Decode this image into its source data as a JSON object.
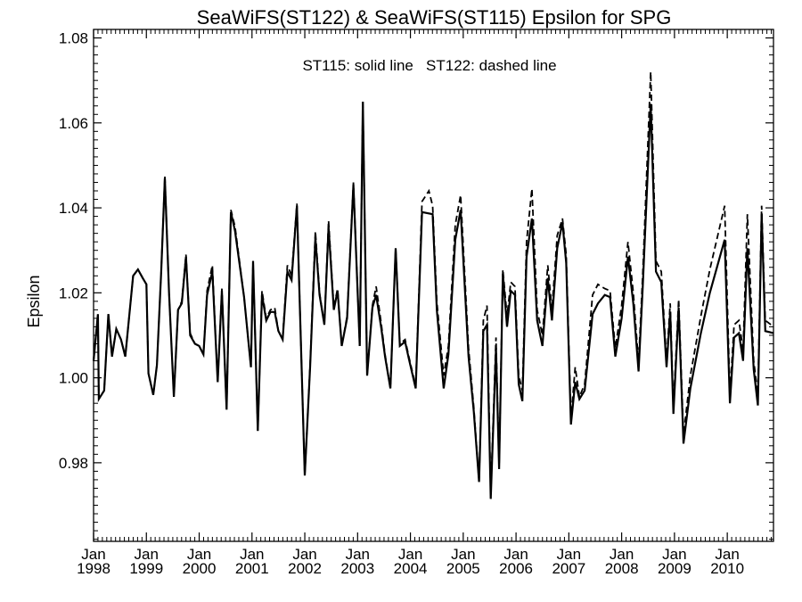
{
  "chart_data": {
    "type": "line",
    "title": "SeaWiFS(ST122) & SeaWiFS(ST115)  Epsilon for SPG",
    "annotation": "ST115: solid line   ST122: dashed line",
    "ylabel": "Epsilon",
    "xlabel": "",
    "xlim": [
      1998.0,
      2010.875
    ],
    "ylim": [
      0.9615,
      1.082
    ],
    "x_ticks": [
      {
        "x": 1998,
        "month": "Jan",
        "year": "1998"
      },
      {
        "x": 1999,
        "month": "Jan",
        "year": "1999"
      },
      {
        "x": 2000,
        "month": "Jan",
        "year": "2000"
      },
      {
        "x": 2001,
        "month": "Jan",
        "year": "2001"
      },
      {
        "x": 2002,
        "month": "Jan",
        "year": "2002"
      },
      {
        "x": 2003,
        "month": "Jan",
        "year": "2003"
      },
      {
        "x": 2004,
        "month": "Jan",
        "year": "2004"
      },
      {
        "x": 2005,
        "month": "Jan",
        "year": "2005"
      },
      {
        "x": 2006,
        "month": "Jan",
        "year": "2006"
      },
      {
        "x": 2007,
        "month": "Jan",
        "year": "2007"
      },
      {
        "x": 2008,
        "month": "Jan",
        "year": "2008"
      },
      {
        "x": 2009,
        "month": "Jan",
        "year": "2009"
      },
      {
        "x": 2010,
        "month": "Jan",
        "year": "2010"
      }
    ],
    "y_ticks": [
      {
        "value": 0.98,
        "label": "0.98"
      },
      {
        "value": 1.0,
        "label": "1.00"
      },
      {
        "value": 1.02,
        "label": "1.02"
      },
      {
        "value": 1.04,
        "label": "1.04"
      },
      {
        "value": 1.06,
        "label": "1.06"
      },
      {
        "value": 1.08,
        "label": "1.08"
      }
    ],
    "grid": false,
    "series": [
      {
        "name": "ST115",
        "style": "solid",
        "color": "#000000",
        "points": [
          [
            1998.0,
            1.004
          ],
          [
            1998.083,
            1.015
          ],
          [
            1998.1,
            0.995
          ],
          [
            1998.2,
            0.997
          ],
          [
            1998.28,
            1.015
          ],
          [
            1998.35,
            1.005
          ],
          [
            1998.43,
            1.0115
          ],
          [
            1998.52,
            1.009
          ],
          [
            1998.6,
            1.005
          ],
          [
            1998.75,
            1.024
          ],
          [
            1998.84,
            1.0255
          ],
          [
            1998.93,
            1.0235
          ],
          [
            1999.0,
            1.022
          ],
          [
            1999.04,
            1.001
          ],
          [
            1999.13,
            0.996
          ],
          [
            1999.2,
            1.003
          ],
          [
            1999.28,
            1.025
          ],
          [
            1999.35,
            1.047
          ],
          [
            1999.43,
            1.02
          ],
          [
            1999.52,
            0.9955
          ],
          [
            1999.6,
            1.016
          ],
          [
            1999.67,
            1.0175
          ],
          [
            1999.75,
            1.0285
          ],
          [
            1999.83,
            1.01
          ],
          [
            1999.92,
            1.008
          ],
          [
            2000.0,
            1.0075
          ],
          [
            2000.08,
            1.0055
          ],
          [
            2000.15,
            1.0195
          ],
          [
            2000.25,
            1.025
          ],
          [
            2000.35,
            0.999
          ],
          [
            2000.43,
            1.0205
          ],
          [
            2000.52,
            0.9925
          ],
          [
            2000.6,
            1.039
          ],
          [
            2000.68,
            1.0345
          ],
          [
            2000.85,
            1.019
          ],
          [
            2000.98,
            1.0025
          ],
          [
            2001.02,
            1.0275
          ],
          [
            2001.11,
            0.9875
          ],
          [
            2001.19,
            1.0195
          ],
          [
            2001.27,
            1.0135
          ],
          [
            2001.35,
            1.0155
          ],
          [
            2001.43,
            1.0155
          ],
          [
            2001.5,
            1.011
          ],
          [
            2001.58,
            1.009
          ],
          [
            2001.67,
            1.025
          ],
          [
            2001.75,
            1.023
          ],
          [
            2001.85,
            1.0405
          ],
          [
            2002.0,
            0.977
          ],
          [
            2002.1,
            1.0025
          ],
          [
            2002.2,
            1.033
          ],
          [
            2002.28,
            1.0195
          ],
          [
            2002.37,
            1.0125
          ],
          [
            2002.45,
            1.0355
          ],
          [
            2002.55,
            1.016
          ],
          [
            2002.62,
            1.0205
          ],
          [
            2002.7,
            1.0075
          ],
          [
            2002.8,
            1.014
          ],
          [
            2002.92,
            1.0455
          ],
          [
            2003.04,
            1.0075
          ],
          [
            2003.1,
            1.065
          ],
          [
            2003.18,
            1.0005
          ],
          [
            2003.28,
            1.0165
          ],
          [
            2003.35,
            1.0195
          ],
          [
            2003.45,
            1.0115
          ],
          [
            2003.52,
            1.005
          ],
          [
            2003.62,
            0.9975
          ],
          [
            2003.72,
            1.0305
          ],
          [
            2003.8,
            1.0075
          ],
          [
            2003.9,
            1.0085
          ],
          [
            2003.97,
            1.0045
          ],
          [
            2004.1,
            0.9975
          ],
          [
            2004.22,
            1.039
          ],
          [
            2004.42,
            1.0385
          ],
          [
            2004.5,
            1.016
          ],
          [
            2004.63,
            0.9975
          ],
          [
            2004.72,
            1.0055
          ],
          [
            2004.85,
            1.0325
          ],
          [
            2004.95,
            1.0395
          ],
          [
            2005.1,
            1.005
          ],
          [
            2005.2,
            0.992
          ],
          [
            2005.3,
            0.9755
          ],
          [
            2005.38,
            1.011
          ],
          [
            2005.45,
            1.0125
          ],
          [
            2005.52,
            0.9715
          ],
          [
            2005.62,
            1.007
          ],
          [
            2005.68,
            0.9785
          ],
          [
            2005.75,
            1.0245
          ],
          [
            2005.83,
            1.012
          ],
          [
            2005.9,
            1.0205
          ],
          [
            2005.98,
            1.0195
          ],
          [
            2006.05,
            0.9985
          ],
          [
            2006.12,
            0.9945
          ],
          [
            2006.2,
            1.0285
          ],
          [
            2006.3,
            1.0375
          ],
          [
            2006.4,
            1.0135
          ],
          [
            2006.5,
            1.0075
          ],
          [
            2006.6,
            1.0235
          ],
          [
            2006.68,
            1.0135
          ],
          [
            2006.78,
            1.0305
          ],
          [
            2006.88,
            1.0365
          ],
          [
            2006.95,
            1.027
          ],
          [
            2007.04,
            0.989
          ],
          [
            2007.12,
            0.999
          ],
          [
            2007.2,
            0.995
          ],
          [
            2007.3,
            0.997
          ],
          [
            2007.45,
            1.015
          ],
          [
            2007.55,
            1.0175
          ],
          [
            2007.68,
            1.0195
          ],
          [
            2007.78,
            1.019
          ],
          [
            2007.88,
            1.005
          ],
          [
            2008.0,
            1.014
          ],
          [
            2008.12,
            1.0285
          ],
          [
            2008.22,
            1.0175
          ],
          [
            2008.32,
            1.0015
          ],
          [
            2008.4,
            1.0215
          ],
          [
            2008.55,
            1.0645
          ],
          [
            2008.65,
            1.025
          ],
          [
            2008.75,
            1.0225
          ],
          [
            2008.85,
            1.0025
          ],
          [
            2008.92,
            1.0155
          ],
          [
            2008.98,
            0.9915
          ],
          [
            2009.08,
            1.0165
          ],
          [
            2009.17,
            0.9845
          ],
          [
            2009.3,
            0.9975
          ],
          [
            2009.5,
            1.0105
          ],
          [
            2009.67,
            1.02
          ],
          [
            2009.95,
            1.0325
          ],
          [
            2010.05,
            0.994
          ],
          [
            2010.13,
            1.0095
          ],
          [
            2010.22,
            1.0105
          ],
          [
            2010.3,
            1.004
          ],
          [
            2010.38,
            1.0305
          ],
          [
            2010.5,
            1.002
          ],
          [
            2010.58,
            0.9935
          ],
          [
            2010.65,
            1.0385
          ],
          [
            2010.72,
            1.011
          ],
          [
            2010.88,
            1.0105
          ]
        ]
      },
      {
        "name": "ST122",
        "style": "dashed",
        "color": "#000000",
        "points": [
          [
            1998.0,
            1.004
          ],
          [
            1998.083,
            1.015
          ],
          [
            1998.1,
            0.995
          ],
          [
            1998.2,
            0.997
          ],
          [
            1998.28,
            1.015
          ],
          [
            1998.35,
            1.005
          ],
          [
            1998.43,
            1.0115
          ],
          [
            1998.52,
            1.009
          ],
          [
            1998.6,
            1.005
          ],
          [
            1998.75,
            1.024
          ],
          [
            1998.84,
            1.0255
          ],
          [
            1998.93,
            1.0235
          ],
          [
            1999.0,
            1.022
          ],
          [
            1999.04,
            1.001
          ],
          [
            1999.13,
            0.996
          ],
          [
            1999.2,
            1.003
          ],
          [
            1999.28,
            1.025
          ],
          [
            1999.35,
            1.0475
          ],
          [
            1999.43,
            1.02
          ],
          [
            1999.52,
            0.9955
          ],
          [
            1999.6,
            1.016
          ],
          [
            1999.67,
            1.018
          ],
          [
            1999.75,
            1.029
          ],
          [
            1999.83,
            1.0105
          ],
          [
            1999.92,
            1.008
          ],
          [
            2000.0,
            1.0075
          ],
          [
            2000.08,
            1.0055
          ],
          [
            2000.15,
            1.0205
          ],
          [
            2000.25,
            1.0265
          ],
          [
            2000.35,
            0.999
          ],
          [
            2000.43,
            1.021
          ],
          [
            2000.52,
            0.9925
          ],
          [
            2000.6,
            1.0395
          ],
          [
            2000.68,
            1.0355
          ],
          [
            2000.85,
            1.019
          ],
          [
            2000.98,
            1.0025
          ],
          [
            2001.02,
            1.0275
          ],
          [
            2001.11,
            0.9875
          ],
          [
            2001.19,
            1.0205
          ],
          [
            2001.27,
            1.014
          ],
          [
            2001.35,
            1.016
          ],
          [
            2001.43,
            1.0165
          ],
          [
            2001.5,
            1.011
          ],
          [
            2001.58,
            1.0095
          ],
          [
            2001.67,
            1.0265
          ],
          [
            2001.75,
            1.024
          ],
          [
            2001.85,
            1.041
          ],
          [
            2002.0,
            0.977
          ],
          [
            2002.1,
            1.003
          ],
          [
            2002.2,
            1.0345
          ],
          [
            2002.28,
            1.02
          ],
          [
            2002.37,
            1.0125
          ],
          [
            2002.45,
            1.037
          ],
          [
            2002.55,
            1.0165
          ],
          [
            2002.62,
            1.021
          ],
          [
            2002.7,
            1.0075
          ],
          [
            2002.8,
            1.0145
          ],
          [
            2002.92,
            1.046
          ],
          [
            2003.04,
            1.0075
          ],
          [
            2003.1,
            1.065
          ],
          [
            2003.18,
            1.0005
          ],
          [
            2003.28,
            1.017
          ],
          [
            2003.35,
            1.0215
          ],
          [
            2003.45,
            1.0125
          ],
          [
            2003.52,
            1.0055
          ],
          [
            2003.62,
            0.9975
          ],
          [
            2003.72,
            1.0305
          ],
          [
            2003.8,
            1.008
          ],
          [
            2003.9,
            1.009
          ],
          [
            2003.97,
            1.005
          ],
          [
            2004.1,
            0.998
          ],
          [
            2004.22,
            1.0415
          ],
          [
            2004.35,
            1.044
          ],
          [
            2004.42,
            1.0405
          ],
          [
            2004.5,
            1.018
          ],
          [
            2004.63,
            1.0005
          ],
          [
            2004.72,
            1.0075
          ],
          [
            2004.85,
            1.036
          ],
          [
            2004.95,
            1.043
          ],
          [
            2005.1,
            1.007
          ],
          [
            2005.2,
            0.993
          ],
          [
            2005.3,
            0.9755
          ],
          [
            2005.38,
            1.0135
          ],
          [
            2005.45,
            1.017
          ],
          [
            2005.52,
            0.9725
          ],
          [
            2005.62,
            1.0095
          ],
          [
            2005.68,
            0.979
          ],
          [
            2005.75,
            1.0255
          ],
          [
            2005.83,
            1.0145
          ],
          [
            2005.9,
            1.0225
          ],
          [
            2005.98,
            1.0215
          ],
          [
            2006.05,
            1.0005
          ],
          [
            2006.12,
            0.997
          ],
          [
            2006.2,
            1.032
          ],
          [
            2006.3,
            1.0445
          ],
          [
            2006.4,
            1.016
          ],
          [
            2006.5,
            1.01
          ],
          [
            2006.6,
            1.0265
          ],
          [
            2006.68,
            1.016
          ],
          [
            2006.78,
            1.0335
          ],
          [
            2006.88,
            1.0375
          ],
          [
            2006.95,
            1.029
          ],
          [
            2007.04,
            0.9905
          ],
          [
            2007.12,
            1.0025
          ],
          [
            2007.2,
            0.9955
          ],
          [
            2007.3,
            0.9985
          ],
          [
            2007.45,
            1.0195
          ],
          [
            2007.55,
            1.022
          ],
          [
            2007.68,
            1.021
          ],
          [
            2007.78,
            1.0205
          ],
          [
            2007.88,
            1.007
          ],
          [
            2008.0,
            1.017
          ],
          [
            2008.12,
            1.032
          ],
          [
            2008.22,
            1.02
          ],
          [
            2008.32,
            1.0035
          ],
          [
            2008.4,
            1.0245
          ],
          [
            2008.55,
            1.072
          ],
          [
            2008.65,
            1.0275
          ],
          [
            2008.75,
            1.025
          ],
          [
            2008.85,
            1.004
          ],
          [
            2008.92,
            1.0175
          ],
          [
            2008.98,
            0.993
          ],
          [
            2009.08,
            1.0185
          ],
          [
            2009.17,
            0.9865
          ],
          [
            2009.3,
            1.0005
          ],
          [
            2009.5,
            1.0145
          ],
          [
            2009.67,
            1.0255
          ],
          [
            2009.95,
            1.0405
          ],
          [
            2010.05,
            0.996
          ],
          [
            2010.13,
            1.0125
          ],
          [
            2010.22,
            1.0135
          ],
          [
            2010.3,
            1.0065
          ],
          [
            2010.38,
            1.0385
          ],
          [
            2010.5,
            1.004
          ],
          [
            2010.58,
            0.996
          ],
          [
            2010.65,
            1.0405
          ],
          [
            2010.72,
            1.0135
          ],
          [
            2010.88,
            1.012
          ]
        ]
      }
    ]
  }
}
